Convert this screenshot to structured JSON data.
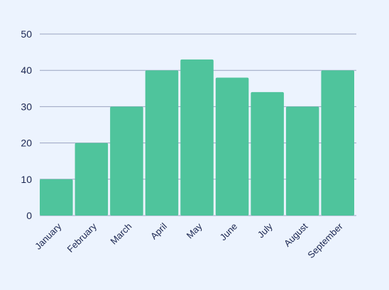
{
  "chart_data": {
    "type": "bar",
    "categories": [
      "January",
      "February",
      "March",
      "April",
      "May",
      "June",
      "July",
      "August",
      "September"
    ],
    "values": [
      10,
      20,
      30,
      40,
      43,
      38,
      34,
      30,
      40
    ],
    "ylim": [
      0,
      50
    ],
    "yticks": [
      "0",
      "10",
      "20",
      "30",
      "40",
      "50"
    ],
    "grid": true,
    "bar_color": "#4fc49c",
    "grid_color": "#9aa3c0",
    "text_color": "#1a2550",
    "background": "#ecf3fe"
  }
}
